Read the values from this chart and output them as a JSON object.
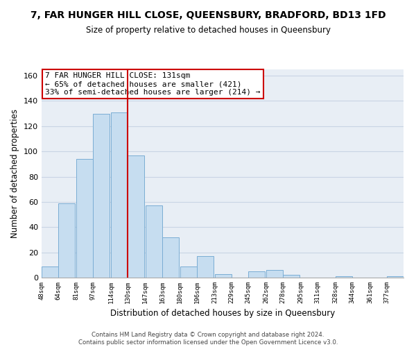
{
  "title": "7, FAR HUNGER HILL CLOSE, QUEENSBURY, BRADFORD, BD13 1FD",
  "subtitle": "Size of property relative to detached houses in Queensbury",
  "xlabel": "Distribution of detached houses by size in Queensbury",
  "ylabel": "Number of detached properties",
  "bin_labels": [
    "48sqm",
    "64sqm",
    "81sqm",
    "97sqm",
    "114sqm",
    "130sqm",
    "147sqm",
    "163sqm",
    "180sqm",
    "196sqm",
    "213sqm",
    "229sqm",
    "245sqm",
    "262sqm",
    "278sqm",
    "295sqm",
    "311sqm",
    "328sqm",
    "344sqm",
    "361sqm",
    "377sqm"
  ],
  "bin_edges": [
    48,
    64,
    81,
    97,
    114,
    130,
    147,
    163,
    180,
    196,
    213,
    229,
    245,
    262,
    278,
    295,
    311,
    328,
    344,
    361,
    377
  ],
  "bar_heights": [
    9,
    59,
    94,
    130,
    131,
    97,
    57,
    32,
    9,
    17,
    3,
    0,
    5,
    6,
    2,
    0,
    0,
    1,
    0,
    0,
    1
  ],
  "bar_color": "#c6ddf0",
  "bar_edge_color": "#7aadd4",
  "marker_color": "#cc0000",
  "annotation_title": "7 FAR HUNGER HILL CLOSE: 131sqm",
  "annotation_line1": "← 65% of detached houses are smaller (421)",
  "annotation_line2": "33% of semi-detached houses are larger (214) →",
  "annotation_box_color": "#ffffff",
  "annotation_box_edge": "#cc0000",
  "ylim": [
    0,
    165
  ],
  "yticks": [
    0,
    20,
    40,
    60,
    80,
    100,
    120,
    140,
    160
  ],
  "footer_line1": "Contains HM Land Registry data © Crown copyright and database right 2024.",
  "footer_line2": "Contains public sector information licensed under the Open Government Licence v3.0.",
  "background_color": "#ffffff",
  "plot_bg_color": "#e8eef5",
  "grid_color": "#c8d4e4"
}
